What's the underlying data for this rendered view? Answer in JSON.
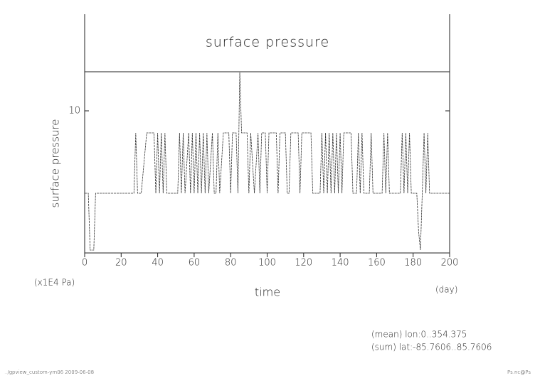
{
  "chart_data": {
    "type": "line",
    "title": "surface pressure",
    "y_label": "surface pressure",
    "x_label": "time",
    "y_unit": "(x1E4 Pa)",
    "x_unit": "(day)",
    "x": [
      0,
      2,
      3,
      5,
      6,
      27,
      28,
      29,
      31,
      34,
      38,
      39,
      40,
      41,
      42,
      43,
      44,
      45,
      51,
      52,
      53,
      54,
      55,
      57,
      58,
      59,
      60,
      61,
      62,
      63,
      64,
      65,
      66,
      67,
      68,
      70,
      71,
      72,
      73,
      74,
      76,
      79,
      80,
      81,
      83,
      84,
      85,
      86,
      89,
      90,
      91,
      93,
      95,
      96,
      97,
      99,
      100,
      101,
      105,
      106,
      107,
      110,
      111,
      112,
      113,
      117,
      118,
      119,
      124,
      125,
      129,
      130,
      131,
      132,
      133,
      134,
      135,
      136,
      137,
      138,
      139,
      140,
      141,
      142,
      146,
      147,
      149,
      150,
      151,
      152,
      153,
      156,
      157,
      158,
      163,
      164,
      165,
      166,
      167,
      173,
      174,
      175,
      176,
      177,
      178,
      179,
      182,
      183,
      184,
      185,
      186,
      187,
      188,
      189,
      200
    ],
    "values": [
      4.2,
      4.2,
      0.2,
      0.2,
      4.2,
      4.2,
      8.45,
      4.2,
      4.2,
      8.45,
      8.45,
      4.2,
      8.45,
      4.2,
      8.45,
      4.2,
      8.45,
      4.2,
      4.2,
      8.45,
      4.2,
      8.45,
      4.2,
      8.45,
      4.2,
      8.45,
      4.2,
      8.45,
      4.2,
      8.45,
      4.2,
      8.45,
      4.2,
      8.45,
      4.2,
      8.45,
      4.2,
      4.2,
      8.45,
      4.2,
      8.45,
      8.45,
      4.2,
      8.45,
      8.45,
      4.2,
      12.7,
      8.45,
      8.45,
      4.2,
      8.45,
      4.2,
      8.45,
      4.2,
      8.45,
      8.45,
      4.2,
      8.45,
      8.45,
      4.2,
      8.45,
      8.45,
      4.2,
      4.2,
      8.45,
      8.45,
      4.2,
      8.45,
      8.45,
      4.2,
      4.2,
      8.45,
      4.2,
      8.45,
      4.2,
      8.45,
      4.2,
      8.45,
      4.2,
      8.45,
      4.2,
      8.45,
      4.2,
      8.45,
      8.45,
      4.2,
      4.2,
      8.45,
      4.2,
      8.45,
      4.2,
      4.2,
      8.45,
      4.2,
      4.2,
      8.45,
      4.2,
      8.45,
      4.2,
      4.2,
      8.45,
      4.2,
      8.45,
      4.2,
      8.45,
      4.2,
      4.2,
      1.5,
      0.2,
      4.2,
      8.45,
      4.2,
      8.45,
      4.2,
      4.2
    ],
    "color": "#333333",
    "xlim": [
      0,
      200
    ],
    "xticks": [
      0,
      20,
      40,
      60,
      80,
      100,
      120,
      140,
      160,
      180,
      200
    ],
    "ylim": [
      0,
      12.75
    ],
    "yticks": [
      10
    ],
    "annotations": [
      "(mean) lon:0..354.375",
      "(sum) lat:-85.7606..85.7606"
    ],
    "footer_left": "../gpview_custom-ym06  2009-06-08",
    "footer_right": "Ps.nc@Ps"
  }
}
